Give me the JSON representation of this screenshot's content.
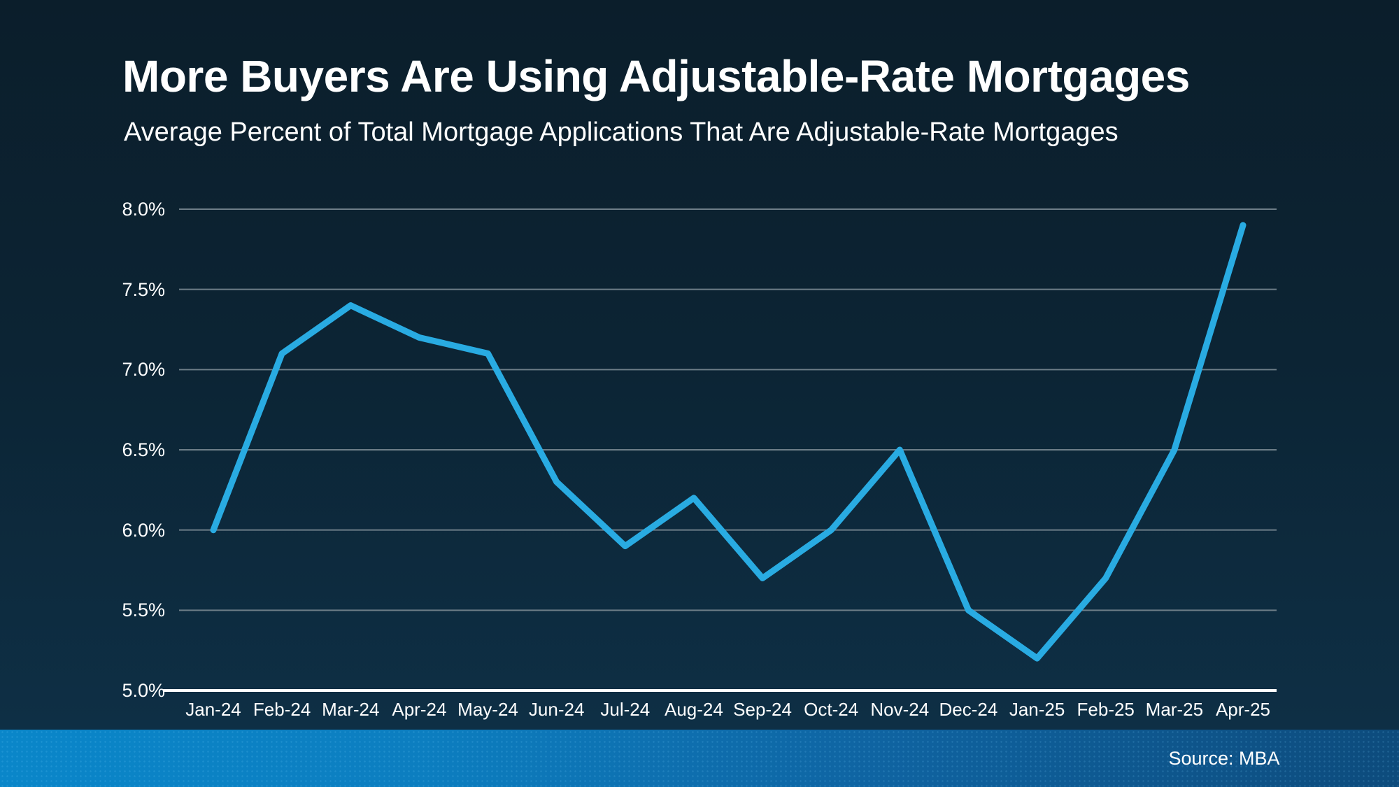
{
  "header": {
    "title": "More Buyers Are Using Adjustable-Rate Mortgages",
    "subtitle": "Average Percent of Total Mortgage Applications That Are Adjustable-Rate Mortgages"
  },
  "footer": {
    "source": "Source: MBA"
  },
  "colors": {
    "text": "#ffffff",
    "background_top": "#0b1e2b",
    "background_bottom": "#0e3148",
    "line": "#29abe2",
    "gridline": "#6e7e88",
    "axis": "#ffffff",
    "footer_left": "#0a86c9",
    "footer_right": "#0d4b7c"
  },
  "chart_data": {
    "type": "line",
    "title": "More Buyers Are Using Adjustable-Rate Mortgages",
    "subtitle": "Average Percent of Total Mortgage Applications That Are Adjustable-Rate Mortgages",
    "xlabel": "",
    "ylabel": "",
    "categories": [
      "Jan-24",
      "Feb-24",
      "Mar-24",
      "Apr-24",
      "May-24",
      "Jun-24",
      "Jul-24",
      "Aug-24",
      "Sep-24",
      "Oct-24",
      "Nov-24",
      "Dec-24",
      "Jan-25",
      "Feb-25",
      "Mar-25",
      "Apr-25"
    ],
    "values": [
      6.0,
      7.1,
      7.4,
      7.2,
      7.1,
      6.3,
      5.9,
      6.2,
      5.7,
      6.0,
      6.5,
      5.5,
      5.2,
      5.7,
      6.5,
      7.9
    ],
    "ylim": [
      5.0,
      8.0
    ],
    "yticks": [
      8.0,
      7.5,
      7.0,
      6.5,
      6.0,
      5.5,
      5.0
    ],
    "ytick_labels": [
      "8.0%",
      "7.5%",
      "7.0%",
      "6.5%",
      "6.0%",
      "5.5%",
      "5.0%"
    ],
    "grid": true,
    "legend": false,
    "source": "Source: MBA"
  }
}
